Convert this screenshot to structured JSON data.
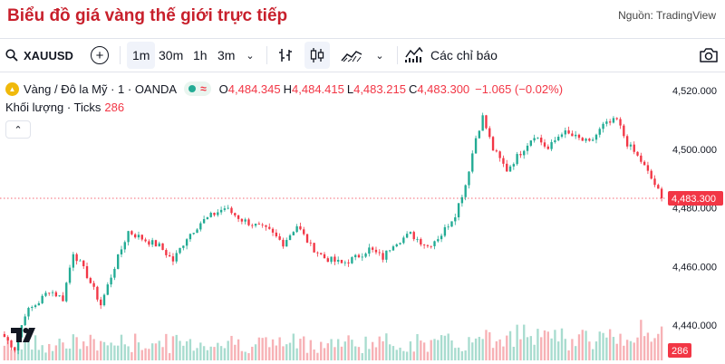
{
  "page": {
    "title": "Biểu đồ giá vàng thế giới trực tiếp",
    "source": "Nguồn: TradingView"
  },
  "toolbar": {
    "symbol": "XAUUSD",
    "intervals": [
      "1m",
      "30m",
      "1h",
      "3m"
    ],
    "active_interval": "1m",
    "indicators_label": "Các chỉ báo"
  },
  "legend": {
    "instrument": "Vàng / Đô la Mỹ · 1 · OANDA",
    "status_symbol": "≈",
    "open_key": "O",
    "open": "4,484.345",
    "high_key": "H",
    "high": "4,484.415",
    "low_key": "L",
    "low": "4,483.215",
    "close_key": "C",
    "close": "4,483.300",
    "change": "−1.065 (−0.02%)",
    "volume_label": "Khối lượng · Ticks",
    "volume_value": "286"
  },
  "colors": {
    "up": "#22ab94",
    "down": "#f23645",
    "title": "#c8202c",
    "volume_up": "#a8dccf",
    "volume_down": "#f7b1b5"
  },
  "chart_data": {
    "type": "candlestick",
    "y_axis": {
      "ticks": [
        "4,520.000",
        "4,500.000",
        "4,480.000",
        "4,460.000",
        "4,440.000"
      ],
      "tick_values": [
        4520,
        4500,
        4480,
        4460,
        4440
      ],
      "ylim": [
        4428,
        4525
      ]
    },
    "current_price_label": "4,483.300",
    "current_price": 4483.3,
    "current_volume_label": "286",
    "price_path": [
      [
        0,
        4436
      ],
      [
        3,
        4432
      ],
      [
        6,
        4444
      ],
      [
        10,
        4448
      ],
      [
        13,
        4452
      ],
      [
        17,
        4449
      ],
      [
        20,
        4465
      ],
      [
        24,
        4457
      ],
      [
        28,
        4447
      ],
      [
        32,
        4460
      ],
      [
        36,
        4472
      ],
      [
        41,
        4469
      ],
      [
        45,
        4467
      ],
      [
        49,
        4462
      ],
      [
        53,
        4470
      ],
      [
        57,
        4475
      ],
      [
        61,
        4478
      ],
      [
        64,
        4480
      ],
      [
        69,
        4476
      ],
      [
        73,
        4474
      ],
      [
        77,
        4472
      ],
      [
        81,
        4468
      ],
      [
        85,
        4474
      ],
      [
        89,
        4467
      ],
      [
        93,
        4463
      ],
      [
        98,
        4461
      ],
      [
        102,
        4463
      ],
      [
        106,
        4466
      ],
      [
        110,
        4463
      ],
      [
        113,
        4468
      ],
      [
        118,
        4471
      ],
      [
        123,
        4467
      ],
      [
        127,
        4471
      ],
      [
        131,
        4478
      ],
      [
        134,
        4488
      ],
      [
        137,
        4504
      ],
      [
        139,
        4511
      ],
      [
        142,
        4500
      ],
      [
        146,
        4493
      ],
      [
        150,
        4499
      ],
      [
        154,
        4505
      ],
      [
        158,
        4500
      ],
      [
        162,
        4506
      ],
      [
        166,
        4504
      ],
      [
        170,
        4502
      ],
      [
        174,
        4508
      ],
      [
        178,
        4510
      ],
      [
        181,
        4502
      ],
      [
        185,
        4496
      ],
      [
        189,
        4488
      ],
      [
        191,
        4483.3
      ]
    ]
  }
}
